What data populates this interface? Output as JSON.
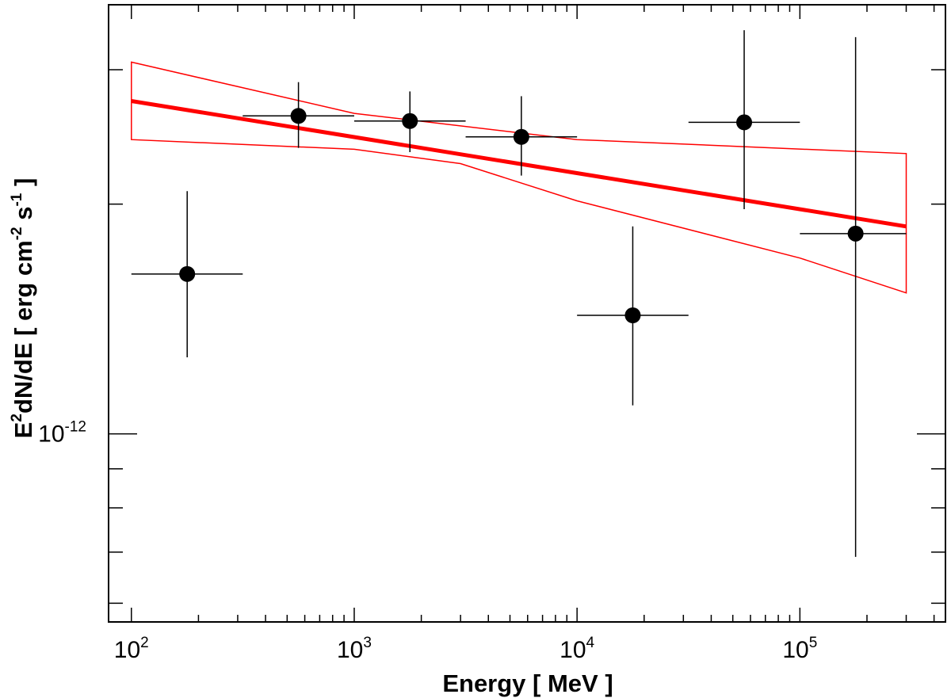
{
  "chart_data": {
    "type": "scatter",
    "title": "",
    "xlabel": "Energy [ MeV ]",
    "ylabel": {
      "parts": [
        "E",
        "2",
        "dN/dE [ erg cm",
        "-2",
        " s",
        "-1",
        " ]"
      ]
    },
    "x_scale": "log",
    "y_scale": "log",
    "xlim": [
      79,
      450000
    ],
    "ylim": [
      5.67e-13,
      3.65e-12
    ],
    "x_tick_labels": [
      {
        "base": "10",
        "exp": "2",
        "value": 100
      },
      {
        "base": "10",
        "exp": "3",
        "value": 1000
      },
      {
        "base": "10",
        "exp": "4",
        "value": 10000
      },
      {
        "base": "10",
        "exp": "5",
        "value": 100000
      }
    ],
    "y_tick_labels": [
      {
        "base": "10",
        "exp": "-12",
        "value": 1e-12
      }
    ],
    "grid": false,
    "points": [
      {
        "x": 178,
        "y": 1.62e-12,
        "xerr": [
          100,
          316
        ],
        "yerr": [
          1.26e-12,
          2.08e-12
        ]
      },
      {
        "x": 562,
        "y": 2.61e-12,
        "xerr": [
          316,
          1000
        ],
        "yerr": [
          2.37e-12,
          2.89e-12
        ]
      },
      {
        "x": 1778,
        "y": 2.57e-12,
        "xerr": [
          1000,
          3162
        ],
        "yerr": [
          2.34e-12,
          2.81e-12
        ]
      },
      {
        "x": 5623,
        "y": 2.45e-12,
        "xerr": [
          3162,
          10000
        ],
        "yerr": [
          2.18e-12,
          2.77e-12
        ]
      },
      {
        "x": 17783,
        "y": 1.43e-12,
        "xerr": [
          10000,
          31623
        ],
        "yerr": [
          1.09e-12,
          1.87e-12
        ]
      },
      {
        "x": 56234,
        "y": 2.56e-12,
        "xerr": [
          31623,
          100000
        ],
        "yerr": [
          1.97e-12,
          3.38e-12
        ]
      },
      {
        "x": 177828,
        "y": 1.83e-12,
        "xerr": [
          100000,
          300000
        ],
        "yerr": [
          6.9e-13,
          3.31e-12
        ]
      }
    ],
    "fit_line": {
      "x": [
        100,
        300000
      ],
      "y": [
        2.73e-12,
        1.87e-12
      ],
      "color": "#ff0000"
    },
    "fit_band": {
      "upper": [
        {
          "x": 100,
          "y": 3.07e-12
        },
        {
          "x": 1000,
          "y": 2.63e-12
        },
        {
          "x": 10000,
          "y": 2.43e-12
        },
        {
          "x": 300000,
          "y": 2.33e-12
        }
      ],
      "lower": [
        {
          "x": 100,
          "y": 2.43e-12
        },
        {
          "x": 1000,
          "y": 2.36e-12
        },
        {
          "x": 3000,
          "y": 2.26e-12
        },
        {
          "x": 10000,
          "y": 2.02e-12
        },
        {
          "x": 100000,
          "y": 1.7e-12
        },
        {
          "x": 300000,
          "y": 1.53e-12
        }
      ],
      "color": "#ff0000"
    },
    "point_color": "#000000"
  }
}
